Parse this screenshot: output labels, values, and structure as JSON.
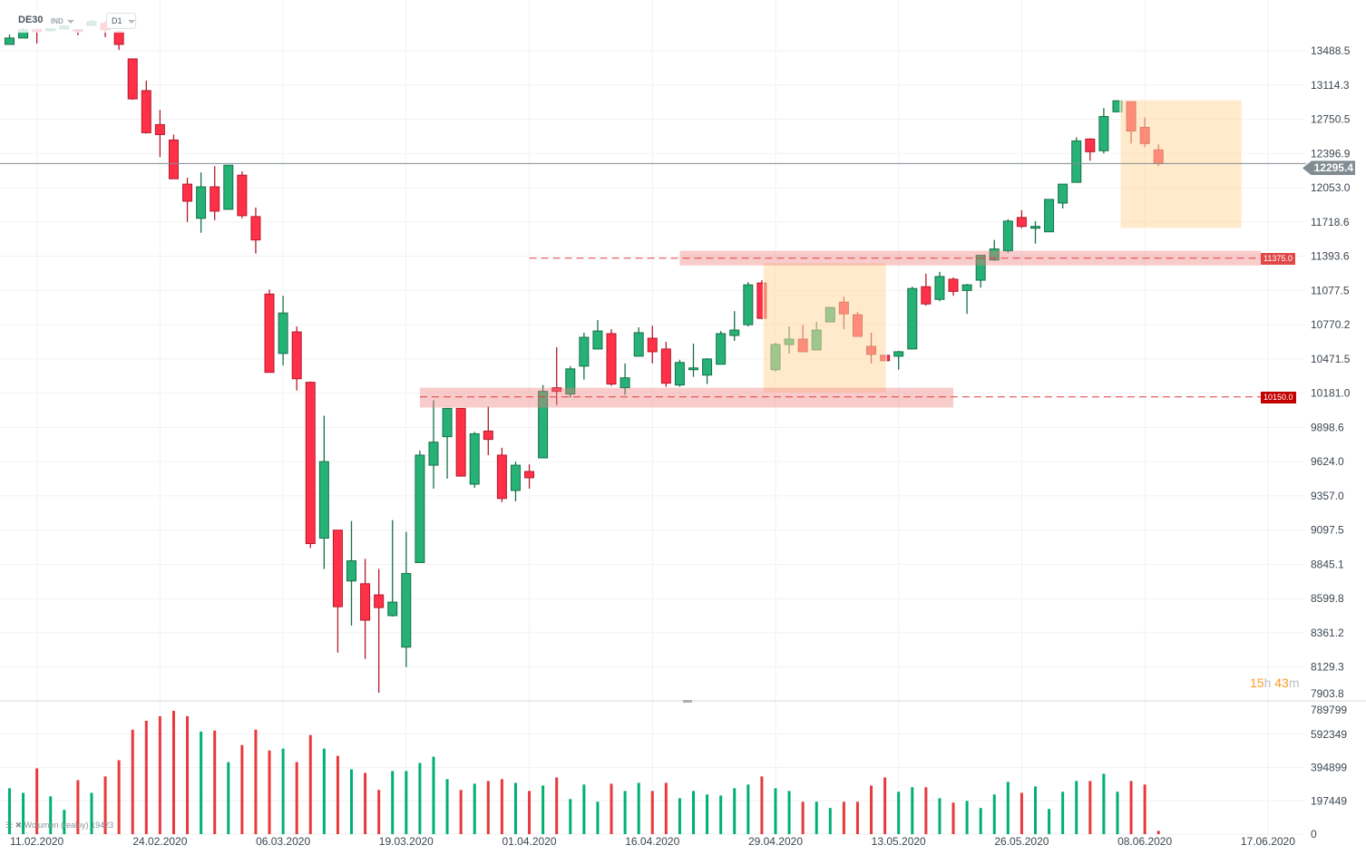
{
  "header": {
    "symbol": "DE30",
    "instrument_type": "IND",
    "timeframe": "D1"
  },
  "current_price": {
    "value": 12295.4,
    "label": "12295.4",
    "color": "#818c93"
  },
  "countdown": {
    "hours": "15",
    "h": "h",
    "minutes": "43",
    "m": "m"
  },
  "volume_legend": {
    "label": "Wolumen",
    "mode": "(realny)",
    "value": "19423"
  },
  "colors": {
    "up": "#26b276",
    "up_border": "#17704a",
    "down": "#ff3048",
    "down_border": "#b31a2c",
    "vol_up": "#00b072",
    "vol_down": "#e8393b",
    "zone": "#f08080",
    "box": "#ffd9a0"
  },
  "chart_data": {
    "type": "candlestick",
    "title": "DE30 D1",
    "price_axis": {
      "scale": "log",
      "ticks": [
        13488.5,
        13114.3,
        12750.5,
        12396.9,
        12053.0,
        11718.6,
        11393.6,
        11077.5,
        10770.2,
        10471.5,
        10181.0,
        9898.6,
        9624.0,
        9357.0,
        9097.5,
        8845.1,
        8599.8,
        8361.2,
        8129.3,
        7903.8
      ],
      "tick_labels": [
        "13488.5",
        "13114.3",
        "12750.5",
        "12396.9",
        "12053.0",
        "11718.6",
        "11393.6",
        "11077.5",
        "10770.2",
        "10471.5",
        "10181.0",
        "9898.6",
        "9624.0",
        "9357.0",
        "9097.5",
        "8845.1",
        "8599.8",
        "8361.2",
        "8129.3",
        "7903.8"
      ]
    },
    "volume_axis": {
      "ticks": [
        789799,
        592349,
        394899,
        197449,
        0
      ],
      "tick_labels": [
        "789799",
        "592349",
        "394899",
        "197449",
        "0"
      ],
      "ylim": [
        0,
        789799
      ]
    },
    "x_labels": [
      {
        "index": 2,
        "label": "11.02.2020"
      },
      {
        "index": 11,
        "label": "24.02.2020"
      },
      {
        "index": 20,
        "label": "06.03.2020"
      },
      {
        "index": 29,
        "label": "19.03.2020"
      },
      {
        "index": 38,
        "label": "01.04.2020"
      },
      {
        "index": 47,
        "label": "16.04.2020"
      },
      {
        "index": 56,
        "label": "29.04.2020"
      },
      {
        "index": 65,
        "label": "13.05.2020"
      },
      {
        "index": 74,
        "label": "26.05.2020"
      },
      {
        "index": 83,
        "label": "08.06.2020"
      },
      {
        "index": 92,
        "label": "17.06.2020"
      }
    ],
    "ohlc": [
      [
        13558,
        13668,
        13558,
        13628
      ],
      [
        13628,
        13738,
        13628,
        13718
      ],
      [
        13718,
        13738,
        13568,
        13698
      ],
      [
        13708,
        13738,
        13718,
        13728
      ],
      [
        13728,
        13768,
        13718,
        13758
      ],
      [
        13718,
        13728,
        13658,
        13698
      ],
      [
        13768,
        13828,
        13758,
        13808
      ],
      [
        13788,
        13808,
        13638,
        13718
      ],
      [
        13698,
        13708,
        13498,
        13558
      ],
      [
        13400,
        13400,
        12957,
        12967
      ],
      [
        13055,
        13163,
        12602,
        12611
      ],
      [
        12695,
        12849,
        12361,
        12592
      ],
      [
        12536,
        12592,
        12143,
        12143
      ],
      [
        12089,
        12152,
        11719,
        11921
      ],
      [
        11754,
        12207,
        11616,
        12062
      ],
      [
        12062,
        12270,
        11736,
        11824
      ],
      [
        11842,
        12279,
        11842,
        12279
      ],
      [
        12179,
        12216,
        11754,
        11780
      ],
      [
        11771,
        11859,
        11419,
        11548
      ],
      [
        11045,
        11086,
        10357,
        10357
      ],
      [
        10519,
        11029,
        10418,
        10875
      ],
      [
        10707,
        10754,
        10204,
        10303
      ],
      [
        10273,
        10280,
        8965,
        8998
      ],
      [
        9038,
        9995,
        8812,
        9624
      ],
      [
        9097,
        9097,
        8227,
        8543
      ],
      [
        8726,
        9166,
        8411,
        8871
      ],
      [
        8706,
        8885,
        8184,
        8449
      ],
      [
        8626,
        8812,
        7960,
        8537
      ],
      [
        8481,
        9173,
        8474,
        8575
      ],
      [
        8264,
        9084,
        8129,
        8779
      ],
      [
        8858,
        9713,
        8858,
        9676
      ],
      [
        9596,
        10122,
        9413,
        9780
      ],
      [
        9824,
        10055,
        9491,
        10055
      ],
      [
        10055,
        10055,
        9511,
        9511
      ],
      [
        9448,
        9862,
        9420,
        9847
      ],
      [
        9869,
        10070,
        9676,
        9802
      ],
      [
        9676,
        9735,
        9309,
        9337
      ],
      [
        9399,
        9624,
        9316,
        9596
      ],
      [
        9547,
        9603,
        9413,
        9498
      ],
      [
        9654,
        10250,
        9654,
        10196
      ],
      [
        10227,
        10574,
        10084,
        10196
      ],
      [
        10174,
        10410,
        10144,
        10387
      ],
      [
        10410,
        10700,
        10296,
        10660
      ],
      [
        10558,
        10811,
        10558,
        10715
      ],
      [
        10692,
        10731,
        10242,
        10258
      ],
      [
        10227,
        10433,
        10166,
        10311
      ],
      [
        10495,
        10747,
        10495,
        10700
      ],
      [
        10652,
        10762,
        10433,
        10534
      ],
      [
        10558,
        10621,
        10235,
        10265
      ],
      [
        10250,
        10464,
        10235,
        10441
      ],
      [
        10380,
        10605,
        10319,
        10395
      ],
      [
        10334,
        10479,
        10258,
        10471
      ],
      [
        10426,
        10715,
        10426,
        10692
      ],
      [
        10676,
        10892,
        10629,
        10723
      ],
      [
        10770,
        11155,
        10754,
        11129
      ],
      [
        11146,
        11172,
        10819,
        10827
      ],
      [
        10380,
        10613,
        10365,
        10597
      ],
      [
        10597,
        10754,
        10519,
        10644
      ],
      [
        10644,
        10770,
        10534,
        10534
      ],
      [
        10550,
        10795,
        10550,
        10723
      ],
      [
        10795,
        10924,
        10795,
        10924
      ],
      [
        10972,
        11021,
        10731,
        10867
      ],
      [
        10859,
        10884,
        10668,
        10668
      ],
      [
        10581,
        10700,
        10433,
        10511
      ],
      [
        10503,
        10503,
        10456,
        10456
      ],
      [
        10495,
        10542,
        10380,
        10534
      ],
      [
        10558,
        11112,
        10558,
        11095
      ],
      [
        11112,
        11232,
        10940,
        10956
      ],
      [
        10997,
        11249,
        10980,
        11206
      ],
      [
        11181,
        11198,
        11029,
        11069
      ],
      [
        11077,
        11138,
        10867,
        11129
      ],
      [
        11172,
        11402,
        11103,
        11402
      ],
      [
        11359,
        11548,
        11351,
        11462
      ],
      [
        11445,
        11745,
        11428,
        11727
      ],
      [
        11762,
        11833,
        11659,
        11676
      ],
      [
        11659,
        11727,
        11513,
        11676
      ],
      [
        11625,
        11939,
        11625,
        11939
      ],
      [
        11903,
        12089,
        11851,
        12089
      ],
      [
        12107,
        12564,
        12107,
        12527
      ],
      [
        12546,
        12555,
        12324,
        12415
      ],
      [
        12425,
        12869,
        12397,
        12780
      ],
      [
        12829,
        12947,
        12829,
        12947
      ],
      [
        12937,
        12937,
        12499,
        12629
      ],
      [
        12667,
        12770,
        12462,
        12499
      ],
      [
        12434,
        12490,
        12270,
        12295.4
      ]
    ],
    "volume": [
      272000,
      245000,
      390000,
      224000,
      144000,
      320000,
      245000,
      342000,
      438000,
      619000,
      672000,
      699000,
      731000,
      699000,
      608000,
      614000,
      427000,
      528000,
      619000,
      496000,
      507000,
      427000,
      587000,
      507000,
      464000,
      384000,
      363000,
      262000,
      374000,
      374000,
      422000,
      459000,
      326000,
      262000,
      299000,
      315000,
      326000,
      304000,
      256000,
      288000,
      336000,
      208000,
      294000,
      192000,
      299000,
      256000,
      304000,
      256000,
      304000,
      213000,
      256000,
      235000,
      229000,
      272000,
      294000,
      342000,
      272000,
      256000,
      192000,
      192000,
      155000,
      192000,
      192000,
      288000,
      336000,
      251000,
      278000,
      278000,
      213000,
      187000,
      197000,
      155000,
      235000,
      310000,
      245000,
      283000,
      149000,
      251000,
      315000,
      315000,
      358000,
      251000,
      315000,
      294000,
      19423
    ],
    "levels": [
      {
        "name": "resistance",
        "price": 11375.0,
        "label": "11375.0",
        "zone": [
          11308,
          11445
        ],
        "zone_from_index": 49,
        "line_from_index": 38,
        "tag_color": "#e04848"
      },
      {
        "name": "support",
        "price": 10150.0,
        "label": "10150.0",
        "zone": [
          10062,
          10227
        ],
        "zone_from_index": 30,
        "zone_to_index": 69,
        "line_from_index": 30,
        "tag_color": "#c40000"
      }
    ],
    "boxes": [
      {
        "from_index": 55.1,
        "to_index": 64.1,
        "price_top": 11334,
        "price_bottom": 10181
      },
      {
        "from_index": 81.2,
        "to_index": 90.1,
        "price_top": 12957,
        "price_bottom": 11659
      }
    ]
  }
}
